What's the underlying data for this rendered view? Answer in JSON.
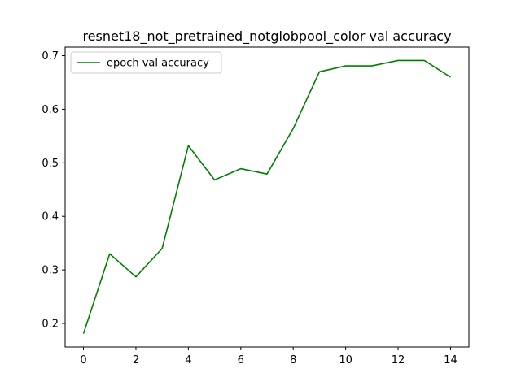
{
  "chart_data": {
    "type": "line",
    "title": "resnet18_not_pretrained_notglobpool_color val accuracy",
    "xlabel": "",
    "ylabel": "",
    "x": [
      0,
      1,
      2,
      3,
      4,
      5,
      6,
      7,
      8,
      9,
      10,
      11,
      12,
      13,
      14
    ],
    "series": [
      {
        "name": "epoch val accuracy",
        "color": "#008000",
        "values": [
          0.181,
          0.33,
          0.287,
          0.34,
          0.532,
          0.468,
          0.489,
          0.479,
          0.564,
          0.67,
          0.681,
          0.681,
          0.691,
          0.691,
          0.66
        ]
      }
    ],
    "xlim": [
      -0.7,
      14.7
    ],
    "ylim": [
      0.156,
      0.716
    ],
    "xticks": [
      0,
      2,
      4,
      6,
      8,
      10,
      12,
      14
    ],
    "xtick_labels": [
      "0",
      "2",
      "4",
      "6",
      "8",
      "10",
      "12",
      "14"
    ],
    "yticks": [
      0.2,
      0.3,
      0.4,
      0.5,
      0.6,
      0.7
    ],
    "ytick_labels": [
      "0.2",
      "0.3",
      "0.4",
      "0.5",
      "0.6",
      "0.7"
    ],
    "grid": false,
    "legend_position": "upper-left"
  }
}
